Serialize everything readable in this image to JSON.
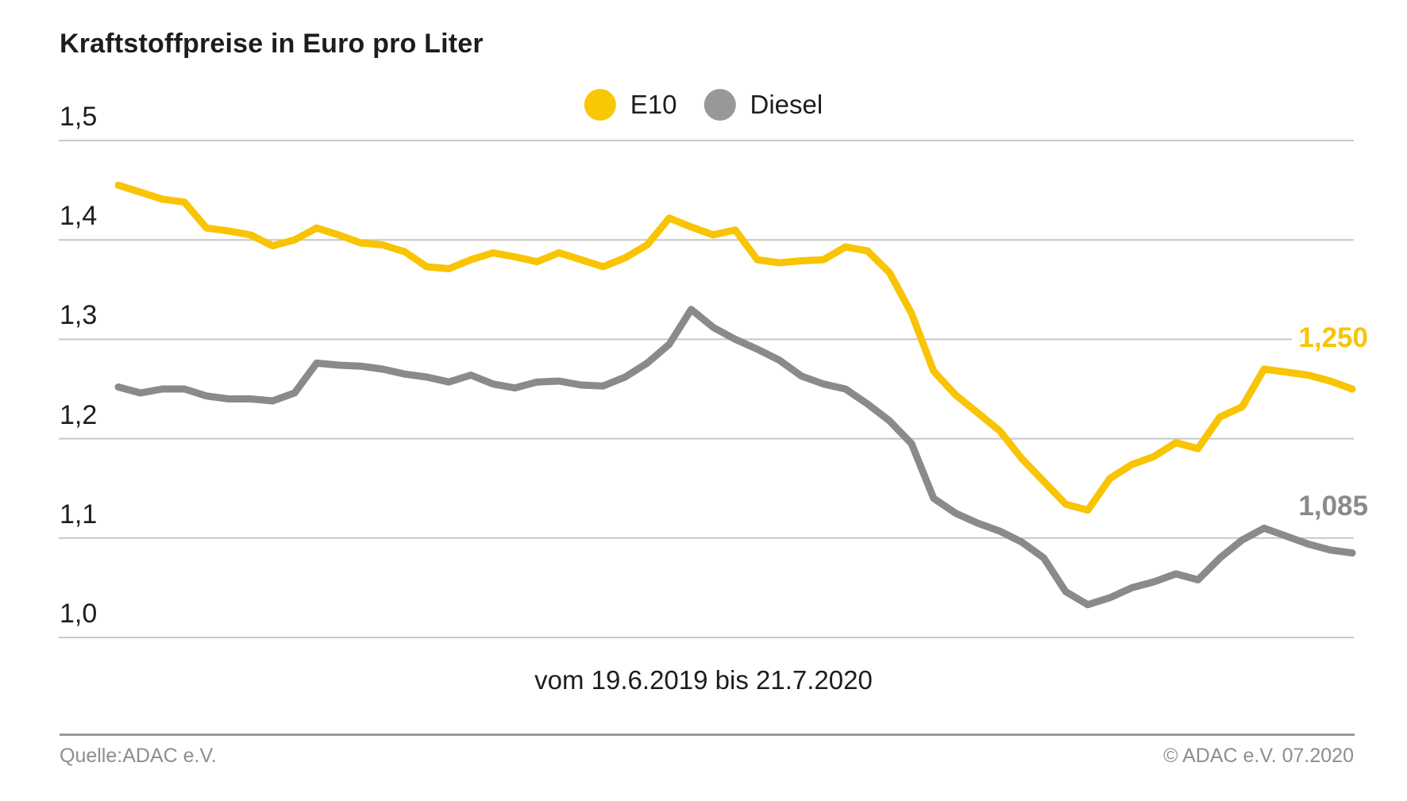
{
  "title": "Kraftstoffpreise in Euro pro Liter",
  "legend": [
    {
      "label": "E10",
      "color": "#f8c804"
    },
    {
      "label": "Diesel",
      "color": "#989898"
    }
  ],
  "period_label": "vom 19.6.2019 bis 21.7.2020",
  "footer": {
    "source": "Quelle:ADAC e.V.",
    "copyright": "© ADAC e.V. 07.2020"
  },
  "end_labels": {
    "e10": "1,250",
    "diesel": "1,085"
  },
  "colors": {
    "e10_line": "#f8c404",
    "diesel_line": "#8a8a8a",
    "e10_label": "#f8c404",
    "diesel_label": "#8a8a8a",
    "gridline": "#c7c7c7",
    "text": "#1d1d1b",
    "footer_text": "#8e8e8e"
  },
  "chart_data": {
    "type": "line",
    "title": "Kraftstoffpreise in Euro pro Liter",
    "x_period": {
      "from": "19.6.2019",
      "to": "21.7.2020",
      "interval": "weekly",
      "label": "vom 19.6.2019 bis 21.7.2020"
    },
    "ylim": [
      1.0,
      1.5
    ],
    "grid": true,
    "legend_position": "top-center",
    "yticks": [
      {
        "label": "1,5",
        "value": 1.5,
        "short": false
      },
      {
        "label": "1,4",
        "value": 1.4,
        "short": false
      },
      {
        "label": "1,3",
        "value": 1.3,
        "short": true
      },
      {
        "label": "1,2",
        "value": 1.2,
        "short": false
      },
      {
        "label": "1,1",
        "value": 1.1,
        "short": false
      },
      {
        "label": "1,0",
        "value": 1.0,
        "short": false
      }
    ],
    "series": [
      {
        "name": "E10",
        "color": "#f8c404",
        "last_value_label": "1,250",
        "values": [
          1.455,
          1.448,
          1.441,
          1.438,
          1.412,
          1.409,
          1.405,
          1.394,
          1.4,
          1.412,
          1.405,
          1.397,
          1.395,
          1.388,
          1.373,
          1.371,
          1.38,
          1.387,
          1.383,
          1.378,
          1.387,
          1.38,
          1.373,
          1.382,
          1.395,
          1.422,
          1.413,
          1.405,
          1.41,
          1.38,
          1.377,
          1.379,
          1.38,
          1.393,
          1.389,
          1.367,
          1.326,
          1.268,
          1.244,
          1.226,
          1.208,
          1.18,
          1.157,
          1.134,
          1.128,
          1.16,
          1.174,
          1.182,
          1.196,
          1.19,
          1.222,
          1.232,
          1.27,
          1.267,
          1.264,
          1.258,
          1.25
        ]
      },
      {
        "name": "Diesel",
        "color": "#8a8a8a",
        "last_value_label": "1,085",
        "values": [
          1.252,
          1.246,
          1.25,
          1.25,
          1.243,
          1.24,
          1.24,
          1.238,
          1.246,
          1.276,
          1.274,
          1.273,
          1.27,
          1.265,
          1.262,
          1.257,
          1.264,
          1.255,
          1.251,
          1.257,
          1.258,
          1.254,
          1.253,
          1.262,
          1.276,
          1.295,
          1.33,
          1.312,
          1.3,
          1.29,
          1.279,
          1.263,
          1.255,
          1.25,
          1.235,
          1.218,
          1.195,
          1.14,
          1.125,
          1.115,
          1.107,
          1.096,
          1.08,
          1.046,
          1.033,
          1.04,
          1.05,
          1.056,
          1.064,
          1.058,
          1.08,
          1.098,
          1.11,
          1.102,
          1.094,
          1.088,
          1.085
        ]
      }
    ]
  }
}
